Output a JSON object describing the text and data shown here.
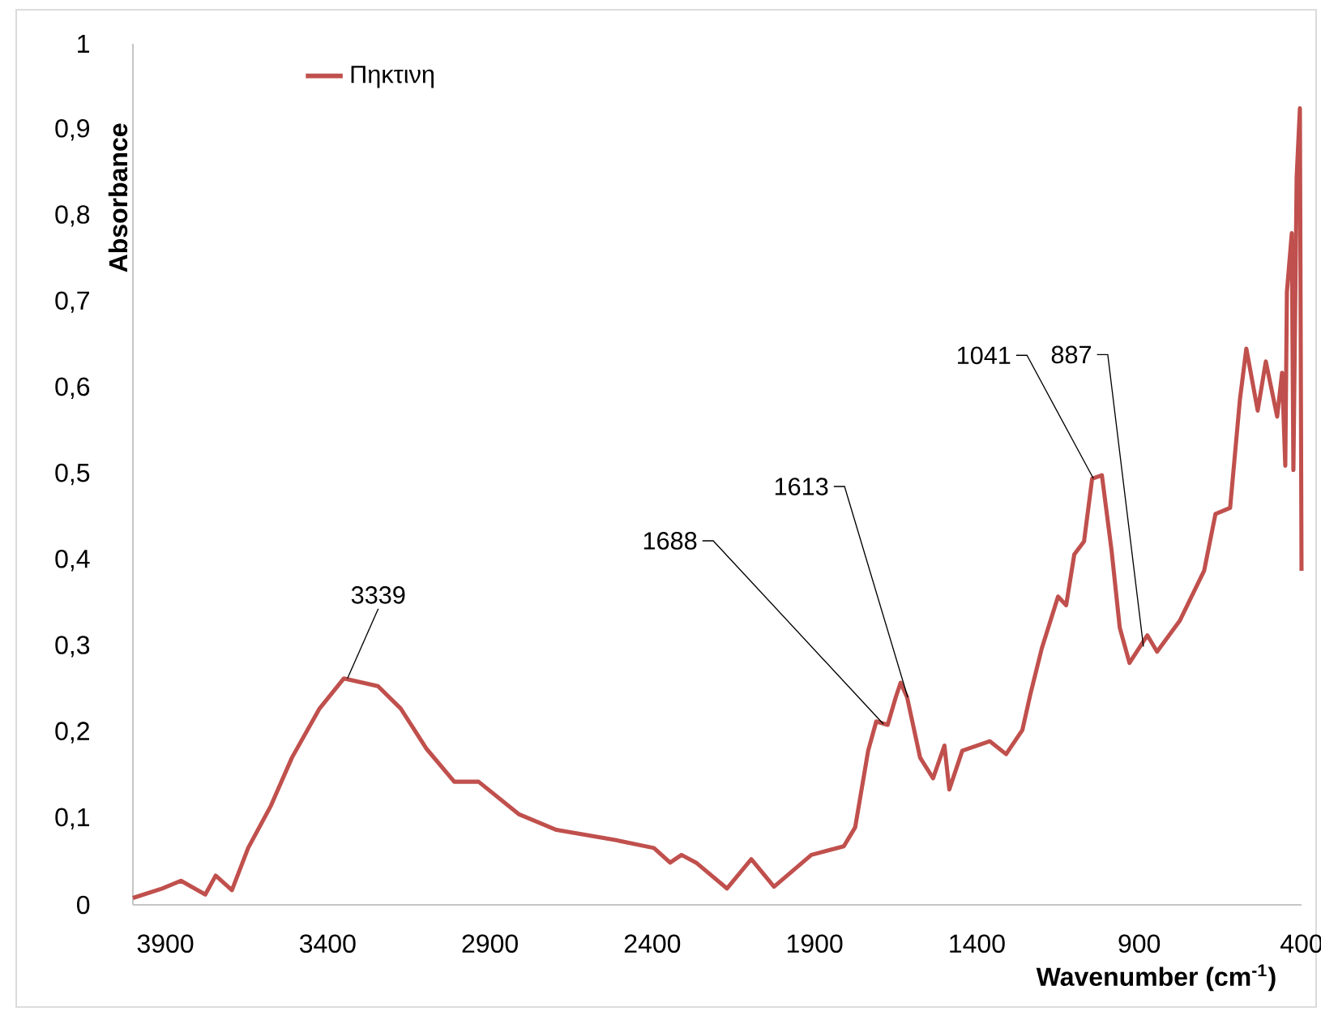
{
  "chart_data": {
    "type": "line",
    "xlabel": "Wavenumber (cm$^{-1}$)",
    "ylabel": "Absorbance",
    "xlim": [
      4000,
      400
    ],
    "ylim": [
      0,
      1
    ],
    "xticks": [
      3900,
      3400,
      2900,
      2400,
      1900,
      1400,
      900,
      400
    ],
    "yticks": [
      0,
      {
        "value": 0.1,
        "label": "0,1"
      },
      {
        "value": 0.2,
        "label": "0,2"
      },
      {
        "value": 0.3,
        "label": "0,3"
      },
      {
        "value": 0.4,
        "label": "0,4"
      },
      {
        "value": 0.5,
        "label": "0,5"
      },
      {
        "value": 0.6,
        "label": "0,6"
      },
      {
        "value": 0.7,
        "label": "0,7"
      },
      {
        "value": 0.8,
        "label": "0,8"
      },
      {
        "value": 0.9,
        "label": "0,9"
      },
      1
    ],
    "grid": false,
    "legend": "top left",
    "marker": "none",
    "line_style": "solid",
    "x": [
      4000,
      3910,
      3852,
      3777,
      3745,
      3695,
      3645,
      3575,
      3510,
      3425,
      3350,
      3245,
      3175,
      3095,
      3010,
      2935,
      2810,
      2695,
      2510,
      2395,
      2345,
      2310,
      2265,
      2170,
      2095,
      2025,
      1910,
      1810,
      1775,
      1735,
      1710,
      1675,
      1650,
      1635,
      1615,
      1575,
      1535,
      1500,
      1485,
      1445,
      1360,
      1310,
      1260,
      1235,
      1200,
      1150,
      1125,
      1100,
      1070,
      1045,
      1015,
      985,
      960,
      930,
      875,
      845,
      775,
      700,
      665,
      620,
      590,
      570,
      535,
      510,
      475,
      460,
      450,
      445,
      430,
      425,
      415,
      405,
      400
    ],
    "series": [
      {
        "name": "Πηκτινη",
        "color": "#c0504d",
        "values": [
          0.008,
          0.019,
          0.028,
          0.012,
          0.034,
          0.017,
          0.066,
          0.115,
          0.171,
          0.228,
          0.263,
          0.254,
          0.228,
          0.181,
          0.143,
          0.143,
          0.105,
          0.087,
          0.075,
          0.066,
          0.049,
          0.058,
          0.049,
          0.019,
          0.053,
          0.021,
          0.058,
          0.068,
          0.09,
          0.179,
          0.213,
          0.209,
          0.241,
          0.258,
          0.241,
          0.171,
          0.147,
          0.185,
          0.134,
          0.179,
          0.19,
          0.175,
          0.203,
          0.245,
          0.298,
          0.358,
          0.348,
          0.407,
          0.422,
          0.495,
          0.499,
          0.411,
          0.322,
          0.281,
          0.313,
          0.294,
          0.33,
          0.388,
          0.454,
          0.461,
          0.586,
          0.646,
          0.574,
          0.631,
          0.567,
          0.618,
          0.51,
          0.712,
          0.78,
          0.505,
          0.845,
          0.925,
          0.388
        ]
      }
    ],
    "annotations": [
      {
        "text": "3339",
        "x": 3339,
        "y": 0.263
      },
      {
        "text": "1688",
        "x": 1688,
        "y": 0.21
      },
      {
        "text": "1613",
        "x": 1613,
        "y": 0.241
      },
      {
        "text": "1041",
        "x": 1041,
        "y": 0.495
      },
      {
        "text": "887",
        "x": 887,
        "y": 0.3
      }
    ]
  }
}
